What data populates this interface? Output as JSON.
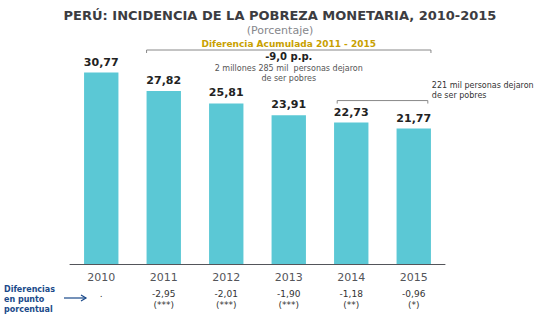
{
  "chart_data": {
    "type": "bar",
    "title": "PERÚ: INCIDENCIA DE LA POBREZA MONETARIA, 2010-2015",
    "subtitle": "(Porcentaje)",
    "categories": [
      "2010",
      "2011",
      "2012",
      "2013",
      "2014",
      "2015"
    ],
    "values": [
      30.77,
      27.82,
      25.81,
      23.91,
      22.73,
      21.77
    ],
    "value_labels": [
      "30,77",
      "27,82",
      "25,81",
      "23,91",
      "22,73",
      "21,77"
    ],
    "data_labels": true,
    "color": "#5bc8d5",
    "ylim": [
      0,
      36
    ],
    "grid": false,
    "tick_labels": "x",
    "annotations": [
      {
        "text": "Diferencia Acumulada 2011 - 2015",
        "color": "#c8a000"
      },
      {
        "text": "-9,0 p.p."
      },
      {
        "text": "2 millones 285 mil  personas dejaron\nde ser pobres"
      },
      {
        "text": "221 mil personas dejaron\nde ser pobres"
      }
    ],
    "footer_label": {
      "text": "Diferencias\nen punto\nporcentual",
      "color": "#1a4a8a"
    },
    "diffs": [
      ".",
      "-2,95\n(***)",
      "-2,01\n(***)",
      "-1,90\n(***)",
      "-1,18\n(**)",
      "-0,96\n(*)"
    ]
  }
}
